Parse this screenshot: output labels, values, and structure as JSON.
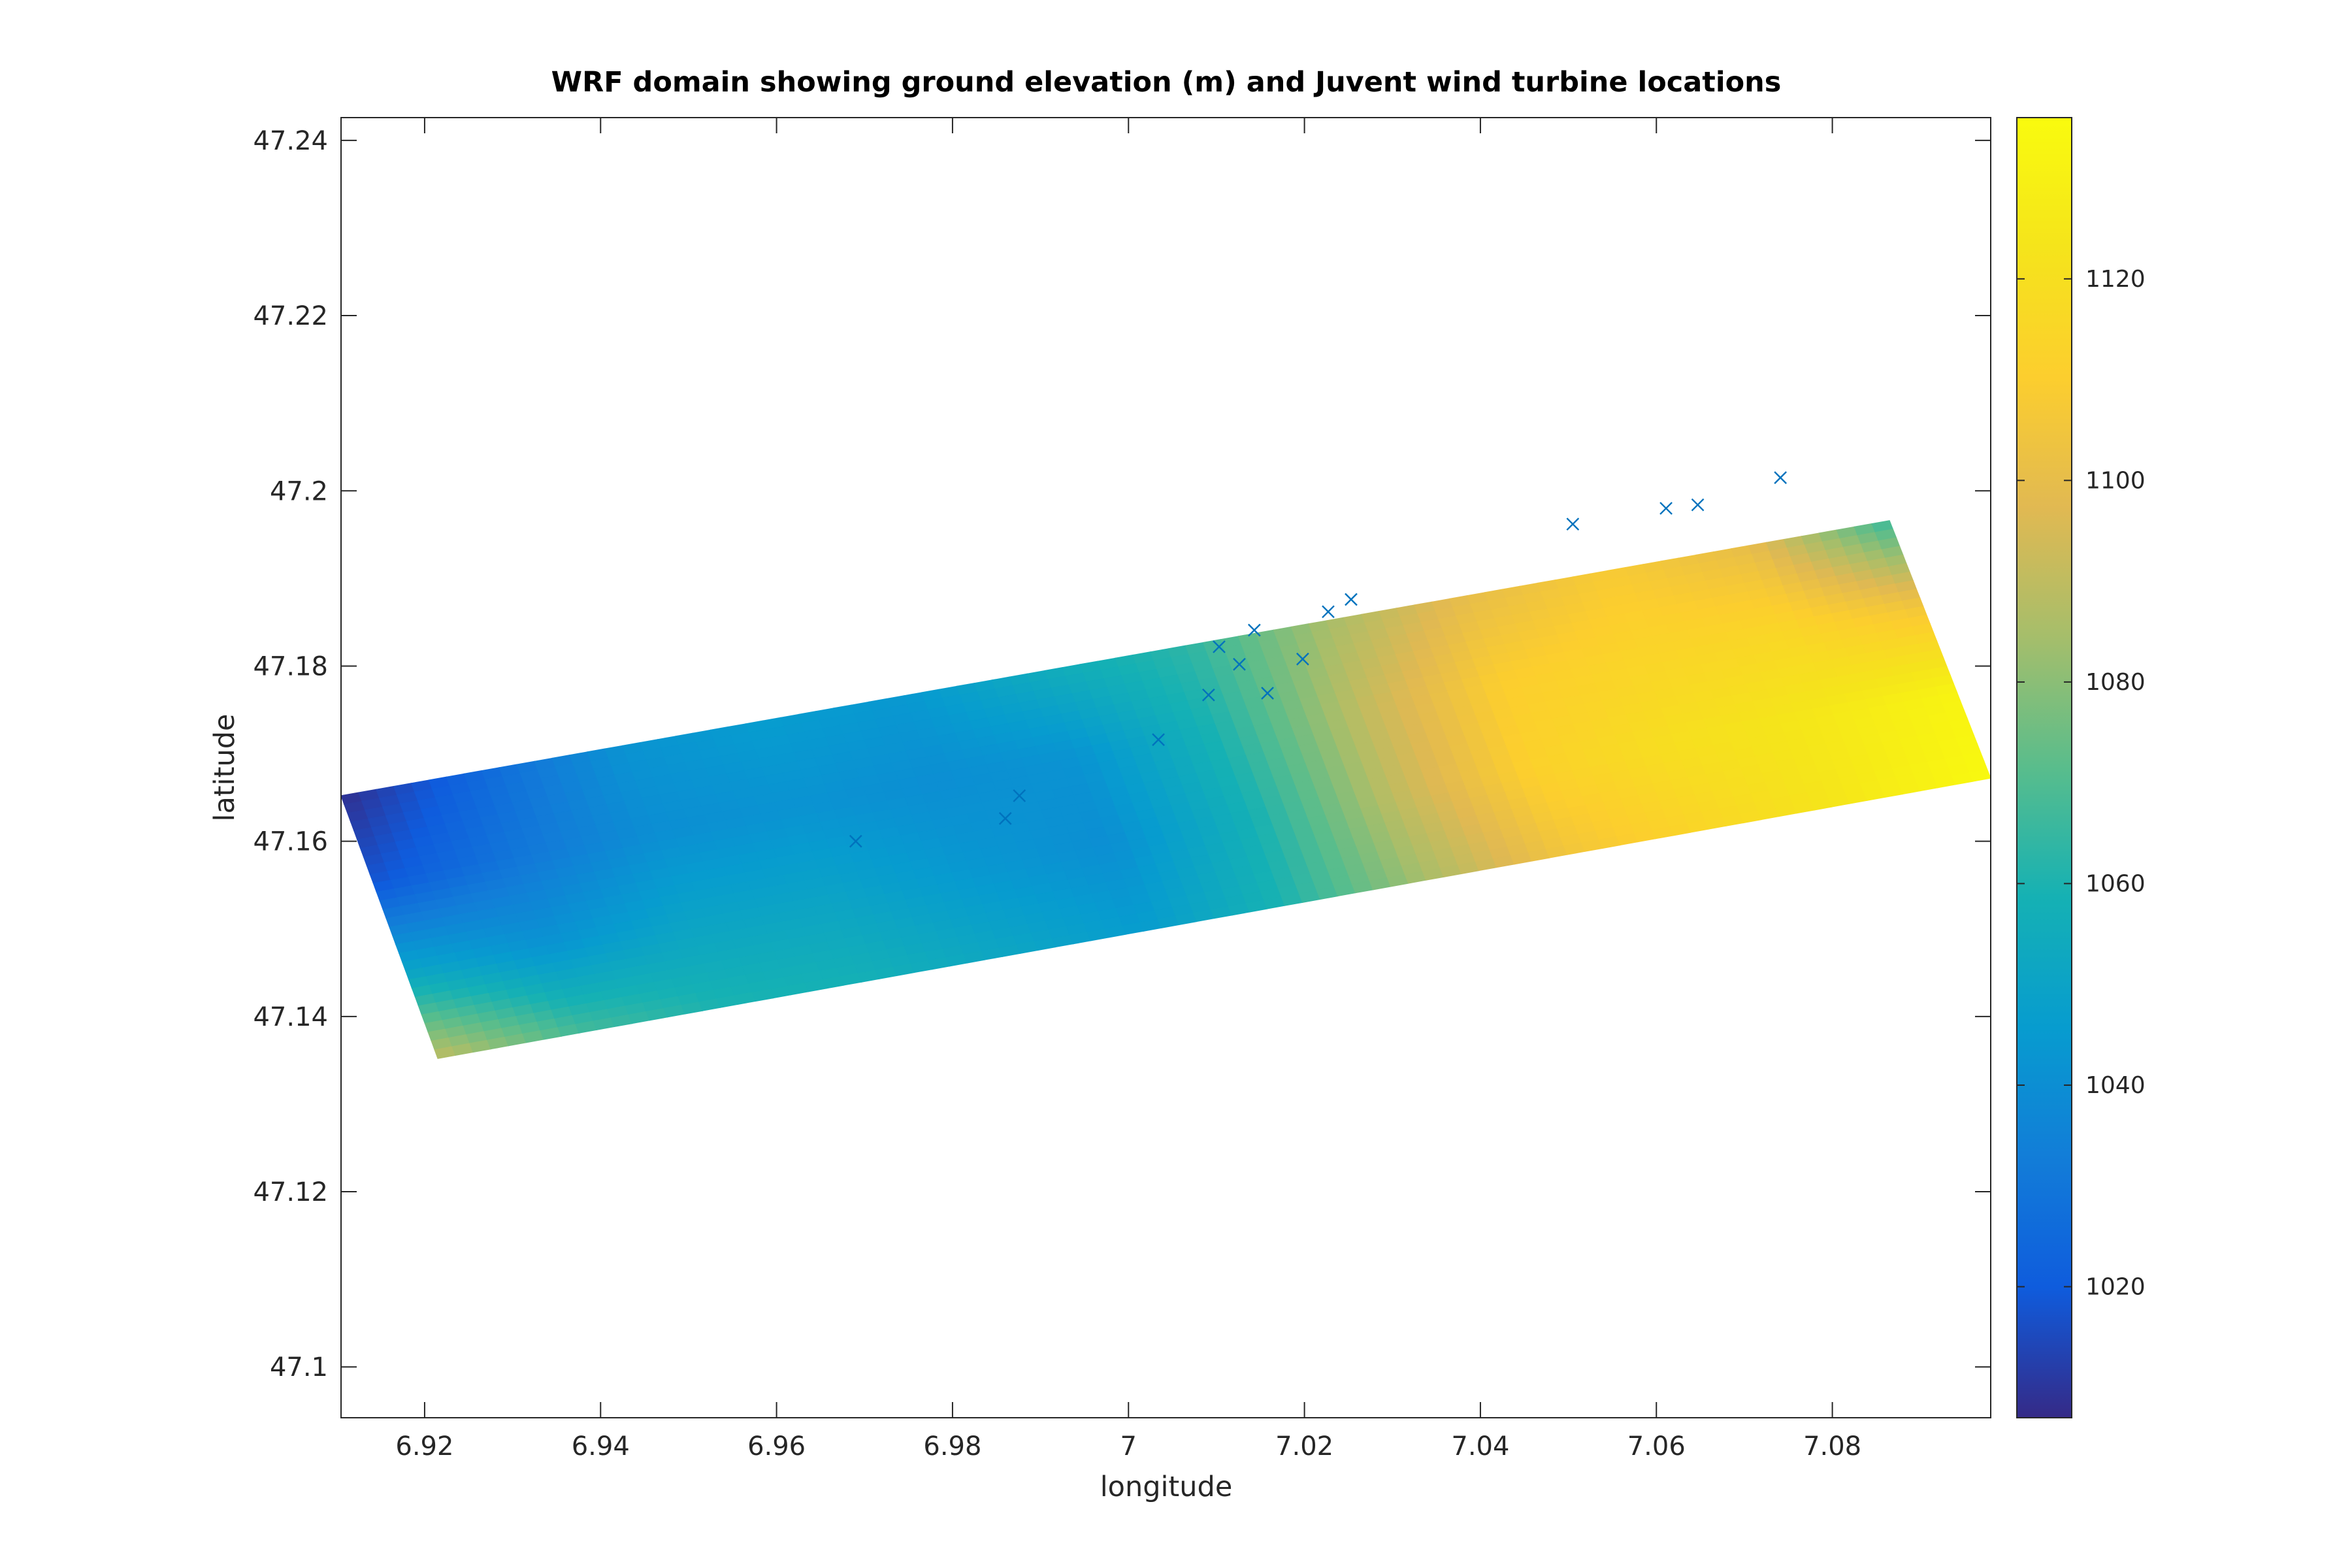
{
  "chart_data": {
    "type": "heatmap",
    "title": "WRF domain showing ground elevation (m) and Juvent wind turbine locations",
    "xlabel": "longitude",
    "ylabel": "latitude",
    "xlim": [
      6.9105,
      7.098
    ],
    "ylim": [
      47.0942,
      47.2426
    ],
    "x_ticks": [
      6.92,
      6.94,
      6.96,
      6.98,
      7.0,
      7.02,
      7.04,
      7.06,
      7.08
    ],
    "x_tick_labels": [
      "6.92",
      "6.94",
      "6.96",
      "6.98",
      "7",
      "7.02",
      "7.04",
      "7.06",
      "7.08"
    ],
    "y_ticks": [
      47.1,
      47.12,
      47.14,
      47.16,
      47.18,
      47.2,
      47.22,
      47.24
    ],
    "y_tick_labels": [
      "47.1",
      "47.12",
      "47.14",
      "47.16",
      "47.18",
      "47.2",
      "47.22",
      "47.24"
    ],
    "domain_corners": {
      "lon": [
        6.9105,
        7.0865,
        7.098,
        6.9215
      ],
      "lat": [
        47.1652,
        47.1966,
        47.1672,
        47.1352
      ]
    },
    "elevation_grid": [
      [
        1008,
        1025,
        1042,
        1046,
        1044,
        1055,
        1063,
        1085,
        1100,
        1108,
        1100,
        1065
      ],
      [
        1018,
        1030,
        1040,
        1042,
        1040,
        1042,
        1060,
        1090,
        1110,
        1114,
        1115,
        1105
      ],
      [
        1050,
        1042,
        1050,
        1050,
        1044,
        1040,
        1058,
        1090,
        1112,
        1120,
        1125,
        1132
      ],
      [
        1090,
        1068,
        1060,
        1058,
        1052,
        1046,
        1060,
        1085,
        1105,
        1115,
        1125,
        1135
      ]
    ],
    "colormap": "parula",
    "clim": [
      1007,
      1136
    ],
    "colorbar_ticks": [
      1020,
      1040,
      1060,
      1080,
      1100,
      1120
    ],
    "colorbar_tick_labels": [
      "1020",
      "1040",
      "1060",
      "1080",
      "1100",
      "1120"
    ],
    "turbine_marker": "x",
    "turbine_color": "#0072bd",
    "turbines": [
      {
        "lon": 6.969,
        "lat": 47.16
      },
      {
        "lon": 6.986,
        "lat": 47.1626
      },
      {
        "lon": 6.9876,
        "lat": 47.1652
      },
      {
        "lon": 7.0034,
        "lat": 47.1716
      },
      {
        "lon": 7.0091,
        "lat": 47.1767
      },
      {
        "lon": 7.0103,
        "lat": 47.1822
      },
      {
        "lon": 7.0126,
        "lat": 47.1802
      },
      {
        "lon": 7.0143,
        "lat": 47.1841
      },
      {
        "lon": 7.0158,
        "lat": 47.1769
      },
      {
        "lon": 7.0198,
        "lat": 47.1808
      },
      {
        "lon": 7.0227,
        "lat": 47.1862
      },
      {
        "lon": 7.0253,
        "lat": 47.1876
      },
      {
        "lon": 7.0505,
        "lat": 47.1962
      },
      {
        "lon": 7.0611,
        "lat": 47.198
      },
      {
        "lon": 7.0647,
        "lat": 47.1984
      },
      {
        "lon": 7.0741,
        "lat": 47.2015
      }
    ]
  }
}
